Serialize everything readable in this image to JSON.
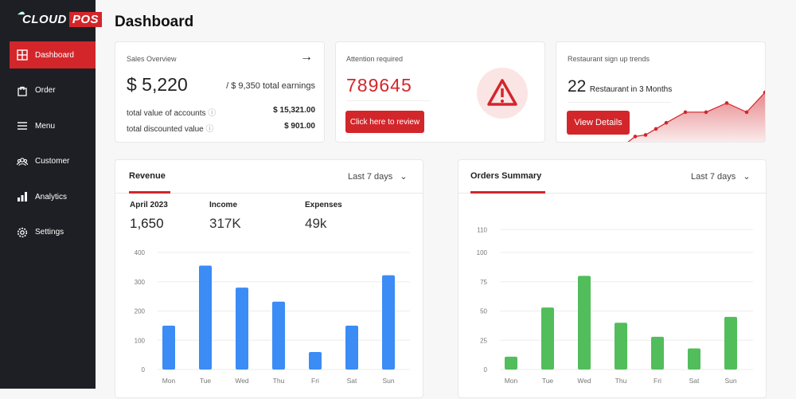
{
  "brand": {
    "logo_text_a": "CLOUD",
    "logo_text_b": "POS"
  },
  "sidebar": {
    "items": [
      {
        "label": "Dashboard",
        "icon": "grid-icon"
      },
      {
        "label": "Order",
        "icon": "bag-icon"
      },
      {
        "label": "Menu",
        "icon": "menu-icon"
      },
      {
        "label": "Customer",
        "icon": "users-icon"
      },
      {
        "label": "Analytics",
        "icon": "bar-chart-icon"
      },
      {
        "label": "Settings",
        "icon": "gear-icon"
      }
    ]
  },
  "page_title": "Dashboard",
  "sales": {
    "title": "Sales Overview",
    "amount": "$ 5,220",
    "total": "/ $ 9,350 total earnings",
    "rows": [
      {
        "label": "total value of accounts",
        "value": "$ 15,321.00"
      },
      {
        "label": "total discounted value",
        "value": "$ 901.00"
      }
    ]
  },
  "attention": {
    "title": "Attention required",
    "value": "789645",
    "button": "Click here to review"
  },
  "trends": {
    "title": "Restaurant sign up trends",
    "count": "22",
    "caption": "Restaurant in 3 Months",
    "button": "View Details",
    "values": [
      0,
      4,
      5,
      9,
      13,
      20,
      20,
      26,
      20,
      33
    ]
  },
  "colors": {
    "accent": "#d3262b",
    "blue": "#3b8cf5",
    "green": "#52bd5b"
  },
  "chart_data": [
    {
      "type": "bar",
      "title": "Revenue",
      "range": "Last 7 days",
      "stats": [
        {
          "label": "April 2023",
          "value": "1,650"
        },
        {
          "label": "Income",
          "value": "317K"
        },
        {
          "label": "Expenses",
          "value": "49k"
        }
      ],
      "categories": [
        "Mon",
        "Tue",
        "Wed",
        "Thu",
        "Fri",
        "Sat",
        "Sun"
      ],
      "values": [
        150,
        355,
        280,
        232,
        60,
        150,
        322
      ],
      "yticks": [
        0,
        100,
        200,
        300,
        400
      ],
      "ylim": [
        0,
        400
      ]
    },
    {
      "type": "bar",
      "title": "Orders Summary",
      "range": "Last 7 days",
      "categories": [
        "Mon",
        "Tue",
        "Wed",
        "Thu",
        "Fri",
        "Sat",
        "Sun"
      ],
      "values": [
        11,
        53,
        80,
        40,
        28,
        18,
        45
      ],
      "yticks": [
        0,
        25,
        50,
        75,
        100,
        110
      ],
      "ylim": [
        0,
        125
      ]
    }
  ]
}
